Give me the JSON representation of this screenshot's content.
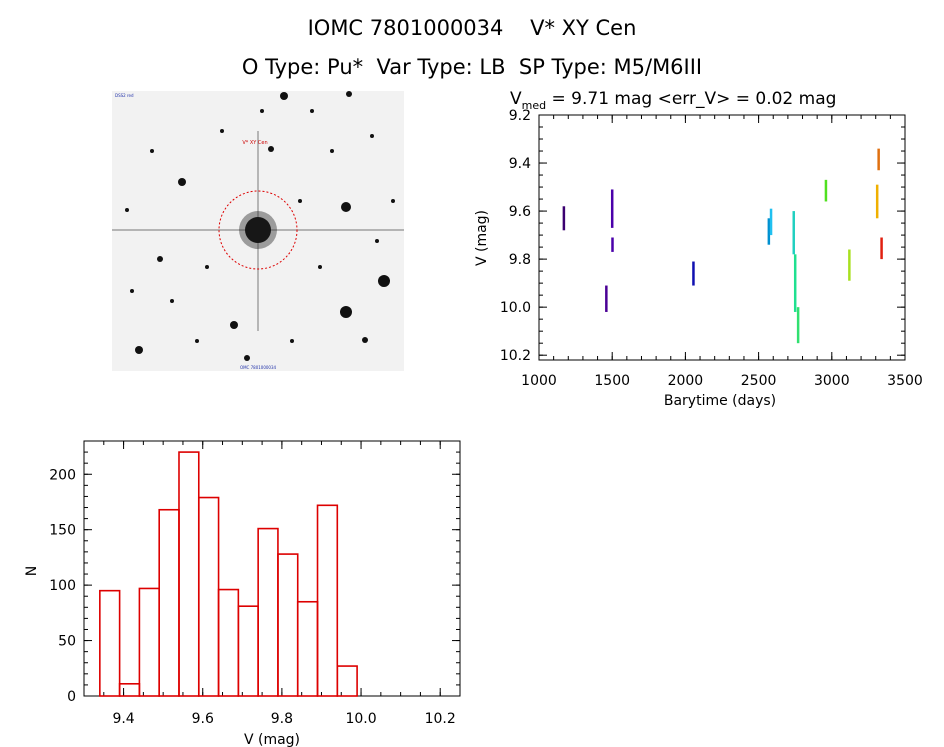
{
  "header": {
    "line1": "IOMC 7801000034    V* XY Cen",
    "line2": "O Type: Pu*  Var Type: LB  SP Type: M5/M6III"
  },
  "stamp": {
    "target_label": "V* XY Cen",
    "corner_tl": "DSS2 red",
    "bottom_label": "OMC 7801000034",
    "colors": {
      "circle": "#dd0000",
      "stars": "#111111",
      "background": "#f2f2f2"
    }
  },
  "chart_data": [
    {
      "type": "scatter",
      "title_parts": {
        "prefix": "V",
        "subscript": "med",
        "rest": " = 9.71 mag <err_V> = 0.02 mag"
      },
      "xlabel": "Barytime (days)",
      "ylabel": "V (mag)",
      "xlim": [
        1000,
        3500
      ],
      "ylim": [
        10.22,
        9.2
      ],
      "y_inverted": true,
      "xticks": [
        1000,
        1500,
        2000,
        2500,
        3000,
        3500
      ],
      "yticks": [
        9.2,
        9.4,
        9.6,
        9.8,
        10.0,
        10.2
      ],
      "ytick_labels": [
        "9.2",
        "9.4",
        "9.6",
        "9.8",
        "10.0",
        "10.2"
      ],
      "segments": [
        {
          "x": 1170,
          "y_top": 9.58,
          "y_bottom": 9.68,
          "color": "#3b0070"
        },
        {
          "x": 1460,
          "y_top": 9.91,
          "y_bottom": 10.02,
          "color": "#4a0095"
        },
        {
          "x": 1500,
          "y_top": 9.51,
          "y_bottom": 9.67,
          "color": "#4a00aa"
        },
        {
          "x": 1502,
          "y_top": 9.71,
          "y_bottom": 9.77,
          "color": "#4a00aa"
        },
        {
          "x": 2055,
          "y_top": 9.81,
          "y_bottom": 9.91,
          "color": "#1010b0"
        },
        {
          "x": 2570,
          "y_top": 9.63,
          "y_bottom": 9.74,
          "color": "#0090d0"
        },
        {
          "x": 2585,
          "y_top": 9.59,
          "y_bottom": 9.7,
          "color": "#20c0f0"
        },
        {
          "x": 2740,
          "y_top": 9.6,
          "y_bottom": 9.78,
          "color": "#20d0c0"
        },
        {
          "x": 2750,
          "y_top": 9.78,
          "y_bottom": 10.02,
          "color": "#20e090"
        },
        {
          "x": 2770,
          "y_top": 10.0,
          "y_bottom": 10.15,
          "color": "#30e070"
        },
        {
          "x": 2960,
          "y_top": 9.47,
          "y_bottom": 9.56,
          "color": "#50e020"
        },
        {
          "x": 3120,
          "y_top": 9.76,
          "y_bottom": 9.89,
          "color": "#a8e020"
        },
        {
          "x": 3310,
          "y_top": 9.49,
          "y_bottom": 9.63,
          "color": "#f0b000"
        },
        {
          "x": 3320,
          "y_top": 9.34,
          "y_bottom": 9.43,
          "color": "#e07010"
        },
        {
          "x": 3340,
          "y_top": 9.71,
          "y_bottom": 9.8,
          "color": "#e02010"
        }
      ]
    },
    {
      "type": "bar",
      "subtype": "histogram",
      "xlabel": "V (mag)",
      "ylabel": "N",
      "xlim": [
        9.3,
        10.25
      ],
      "ylim": [
        0,
        230
      ],
      "bar_color": "#dd0000",
      "xticks": [
        9.4,
        9.6,
        9.8,
        10.0,
        10.2
      ],
      "xtick_labels": [
        "9.4",
        "9.6",
        "9.8",
        "10.0",
        "10.2"
      ],
      "yticks": [
        0,
        50,
        100,
        150,
        200
      ],
      "bin_width": 0.05,
      "bins": [
        {
          "start": 9.34,
          "count": 95
        },
        {
          "start": 9.39,
          "count": 11
        },
        {
          "start": 9.44,
          "count": 97
        },
        {
          "start": 9.49,
          "count": 168
        },
        {
          "start": 9.54,
          "count": 220
        },
        {
          "start": 9.59,
          "count": 179
        },
        {
          "start": 9.64,
          "count": 96
        },
        {
          "start": 9.69,
          "count": 81
        },
        {
          "start": 9.74,
          "count": 151
        },
        {
          "start": 9.79,
          "count": 128
        },
        {
          "start": 9.84,
          "count": 85
        },
        {
          "start": 9.89,
          "count": 172
        },
        {
          "start": 9.94,
          "count": 27
        }
      ]
    }
  ]
}
